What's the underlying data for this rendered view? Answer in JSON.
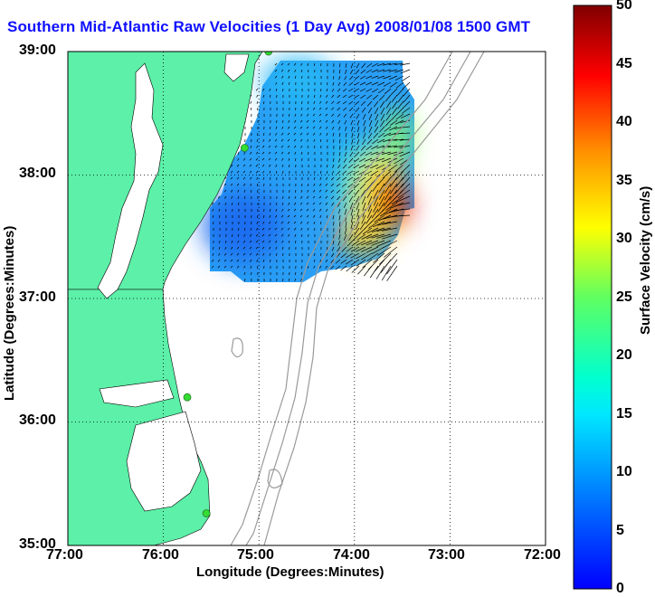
{
  "title": "Southern Mid-Atlantic Raw Velocities (1 Day Avg) 2008/01/08 1500 GMT",
  "x_axis": {
    "label": "Longitude (Degrees:Minutes)",
    "ticks": [
      "77:00",
      "76:00",
      "75:00",
      "74:00",
      "73:00",
      "72:00"
    ]
  },
  "y_axis": {
    "label": "Latitude (Degrees:Minutes)",
    "ticks": [
      "39:00",
      "38:00",
      "37:00",
      "36:00",
      "35:00"
    ]
  },
  "colorbar": {
    "label": "Surface Velocity (cm/s)",
    "ticks": [
      "50",
      "45",
      "40",
      "35",
      "30",
      "25",
      "20",
      "15",
      "10",
      "5",
      "0"
    ],
    "min": 0,
    "max": 50,
    "colormap": "jet"
  },
  "colors": {
    "land": "#5cf0a8",
    "title": "#1010ff",
    "bathymetry": "#9a9a9a",
    "station": "#33dd33"
  },
  "map": {
    "lon_range": [
      -77,
      -72
    ],
    "lat_range": [
      35,
      39
    ],
    "grid": true,
    "stations": [
      {
        "lon": -74.9,
        "lat": 39.0
      },
      {
        "lon": -75.15,
        "lat": 38.22
      },
      {
        "lon": -75.75,
        "lat": 36.2
      },
      {
        "lon": -75.55,
        "lat": 35.26
      }
    ]
  }
}
